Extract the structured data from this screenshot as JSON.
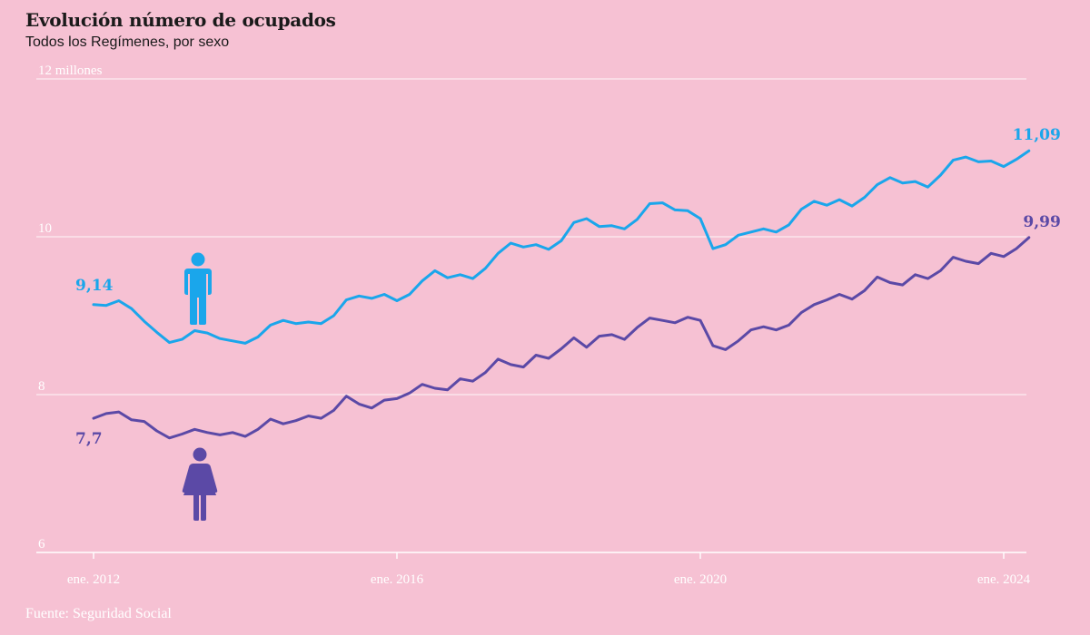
{
  "title": "Evolución número de ocupados",
  "subtitle": "Todos los Regímenes, por sexo",
  "source": "Fuente: Seguridad Social",
  "colors": {
    "men": "#1aa6eb",
    "women": "#5b49a6",
    "background": "#f6c1d3",
    "grid": "#ffffff"
  },
  "icons": {
    "men": "man-icon",
    "women": "woman-icon"
  },
  "chart_data": {
    "type": "line",
    "xlim": [
      "2012-01",
      "2024-05"
    ],
    "ylim": [
      6,
      12
    ],
    "y_ticks": [
      {
        "value": 12,
        "label": "12 millones"
      },
      {
        "value": 10,
        "label": "10"
      },
      {
        "value": 8,
        "label": "8"
      },
      {
        "value": 6,
        "label": "6"
      }
    ],
    "x_ticks": [
      {
        "value": "2012-01",
        "label": "ene. 2012"
      },
      {
        "value": "2016-01",
        "label": "ene. 2016"
      },
      {
        "value": "2020-01",
        "label": "ene. 2020"
      },
      {
        "value": "2024-01",
        "label": "ene. 2024"
      }
    ],
    "grid": true,
    "legend": "icons next to each series",
    "series": [
      {
        "key": "men",
        "start_label": "9,14",
        "end_label": "11,09",
        "points": [
          [
            "2012-01",
            9.14
          ],
          [
            "2012-03",
            9.13
          ],
          [
            "2012-05",
            9.19
          ],
          [
            "2012-07",
            9.09
          ],
          [
            "2012-09",
            8.93
          ],
          [
            "2012-11",
            8.79
          ],
          [
            "2013-01",
            8.66
          ],
          [
            "2013-03",
            8.7
          ],
          [
            "2013-05",
            8.81
          ],
          [
            "2013-07",
            8.78
          ],
          [
            "2013-09",
            8.71
          ],
          [
            "2013-11",
            8.68
          ],
          [
            "2014-01",
            8.65
          ],
          [
            "2014-03",
            8.73
          ],
          [
            "2014-05",
            8.88
          ],
          [
            "2014-07",
            8.94
          ],
          [
            "2014-09",
            8.9
          ],
          [
            "2014-11",
            8.92
          ],
          [
            "2015-01",
            8.9
          ],
          [
            "2015-03",
            9.0
          ],
          [
            "2015-05",
            9.2
          ],
          [
            "2015-07",
            9.25
          ],
          [
            "2015-09",
            9.22
          ],
          [
            "2015-11",
            9.27
          ],
          [
            "2016-01",
            9.19
          ],
          [
            "2016-03",
            9.27
          ],
          [
            "2016-05",
            9.44
          ],
          [
            "2016-07",
            9.57
          ],
          [
            "2016-09",
            9.48
          ],
          [
            "2016-11",
            9.52
          ],
          [
            "2017-01",
            9.47
          ],
          [
            "2017-03",
            9.6
          ],
          [
            "2017-05",
            9.79
          ],
          [
            "2017-07",
            9.92
          ],
          [
            "2017-09",
            9.87
          ],
          [
            "2017-11",
            9.9
          ],
          [
            "2018-01",
            9.84
          ],
          [
            "2018-03",
            9.95
          ],
          [
            "2018-05",
            10.18
          ],
          [
            "2018-07",
            10.23
          ],
          [
            "2018-09",
            10.13
          ],
          [
            "2018-11",
            10.14
          ],
          [
            "2019-01",
            10.1
          ],
          [
            "2019-03",
            10.22
          ],
          [
            "2019-05",
            10.42
          ],
          [
            "2019-07",
            10.43
          ],
          [
            "2019-09",
            10.34
          ],
          [
            "2019-11",
            10.33
          ],
          [
            "2020-01",
            10.23
          ],
          [
            "2020-03",
            9.85
          ],
          [
            "2020-05",
            9.9
          ],
          [
            "2020-07",
            10.02
          ],
          [
            "2020-09",
            10.06
          ],
          [
            "2020-11",
            10.1
          ],
          [
            "2021-01",
            10.06
          ],
          [
            "2021-03",
            10.15
          ],
          [
            "2021-05",
            10.35
          ],
          [
            "2021-07",
            10.45
          ],
          [
            "2021-09",
            10.4
          ],
          [
            "2021-11",
            10.47
          ],
          [
            "2022-01",
            10.39
          ],
          [
            "2022-03",
            10.5
          ],
          [
            "2022-05",
            10.66
          ],
          [
            "2022-07",
            10.75
          ],
          [
            "2022-09",
            10.68
          ],
          [
            "2022-11",
            10.7
          ],
          [
            "2023-01",
            10.63
          ],
          [
            "2023-03",
            10.78
          ],
          [
            "2023-05",
            10.97
          ],
          [
            "2023-07",
            11.01
          ],
          [
            "2023-09",
            10.95
          ],
          [
            "2023-11",
            10.96
          ],
          [
            "2024-01",
            10.89
          ],
          [
            "2024-03",
            10.98
          ],
          [
            "2024-05",
            11.09
          ]
        ]
      },
      {
        "key": "women",
        "start_label": "7,7",
        "end_label": "9,99",
        "points": [
          [
            "2012-01",
            7.7
          ],
          [
            "2012-03",
            7.76
          ],
          [
            "2012-05",
            7.78
          ],
          [
            "2012-07",
            7.68
          ],
          [
            "2012-09",
            7.66
          ],
          [
            "2012-11",
            7.54
          ],
          [
            "2013-01",
            7.45
          ],
          [
            "2013-03",
            7.5
          ],
          [
            "2013-05",
            7.56
          ],
          [
            "2013-07",
            7.52
          ],
          [
            "2013-09",
            7.49
          ],
          [
            "2013-11",
            7.52
          ],
          [
            "2014-01",
            7.47
          ],
          [
            "2014-03",
            7.56
          ],
          [
            "2014-05",
            7.69
          ],
          [
            "2014-07",
            7.63
          ],
          [
            "2014-09",
            7.67
          ],
          [
            "2014-11",
            7.73
          ],
          [
            "2015-01",
            7.7
          ],
          [
            "2015-03",
            7.8
          ],
          [
            "2015-05",
            7.98
          ],
          [
            "2015-07",
            7.88
          ],
          [
            "2015-09",
            7.83
          ],
          [
            "2015-11",
            7.93
          ],
          [
            "2016-01",
            7.95
          ],
          [
            "2016-03",
            8.02
          ],
          [
            "2016-05",
            8.13
          ],
          [
            "2016-07",
            8.08
          ],
          [
            "2016-09",
            8.06
          ],
          [
            "2016-11",
            8.2
          ],
          [
            "2017-01",
            8.17
          ],
          [
            "2017-03",
            8.28
          ],
          [
            "2017-05",
            8.45
          ],
          [
            "2017-07",
            8.38
          ],
          [
            "2017-09",
            8.35
          ],
          [
            "2017-11",
            8.5
          ],
          [
            "2018-01",
            8.46
          ],
          [
            "2018-03",
            8.58
          ],
          [
            "2018-05",
            8.72
          ],
          [
            "2018-07",
            8.6
          ],
          [
            "2018-09",
            8.74
          ],
          [
            "2018-11",
            8.76
          ],
          [
            "2019-01",
            8.7
          ],
          [
            "2019-03",
            8.85
          ],
          [
            "2019-05",
            8.97
          ],
          [
            "2019-07",
            8.94
          ],
          [
            "2019-09",
            8.91
          ],
          [
            "2019-11",
            8.98
          ],
          [
            "2020-01",
            8.94
          ],
          [
            "2020-03",
            8.62
          ],
          [
            "2020-05",
            8.57
          ],
          [
            "2020-07",
            8.68
          ],
          [
            "2020-09",
            8.82
          ],
          [
            "2020-11",
            8.86
          ],
          [
            "2021-01",
            8.82
          ],
          [
            "2021-03",
            8.88
          ],
          [
            "2021-05",
            9.04
          ],
          [
            "2021-07",
            9.14
          ],
          [
            "2021-09",
            9.2
          ],
          [
            "2021-11",
            9.27
          ],
          [
            "2022-01",
            9.21
          ],
          [
            "2022-03",
            9.32
          ],
          [
            "2022-05",
            9.49
          ],
          [
            "2022-07",
            9.42
          ],
          [
            "2022-09",
            9.39
          ],
          [
            "2022-11",
            9.52
          ],
          [
            "2023-01",
            9.47
          ],
          [
            "2023-03",
            9.57
          ],
          [
            "2023-05",
            9.74
          ],
          [
            "2023-07",
            9.69
          ],
          [
            "2023-09",
            9.66
          ],
          [
            "2023-11",
            9.79
          ],
          [
            "2024-01",
            9.75
          ],
          [
            "2024-03",
            9.85
          ],
          [
            "2024-05",
            9.99
          ]
        ]
      }
    ]
  }
}
